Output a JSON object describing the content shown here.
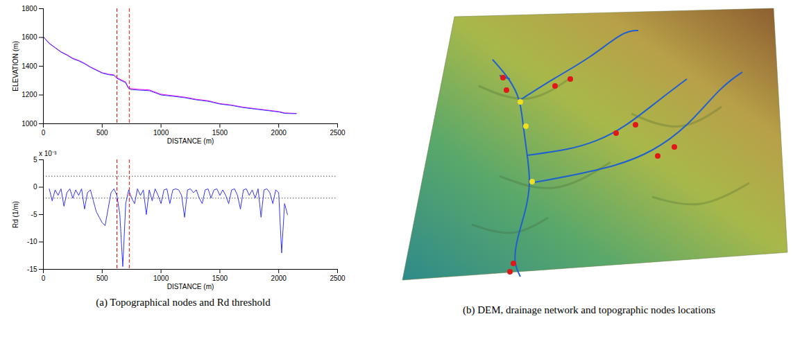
{
  "chart_data": [
    {
      "type": "line",
      "xlabel": "DISTANCE (m)",
      "ylabel": "ELEVATION (m)",
      "x": [
        0,
        50,
        100,
        150,
        200,
        250,
        300,
        350,
        400,
        450,
        500,
        550,
        600,
        625,
        650,
        700,
        720,
        740,
        800,
        900,
        1000,
        1100,
        1200,
        1300,
        1400,
        1500,
        1600,
        1700,
        1800,
        1900,
        2000,
        2050,
        2150
      ],
      "series": [
        {
          "color": "#ff00ff",
          "values": [
            1605,
            1560,
            1530,
            1500,
            1480,
            1455,
            1440,
            1420,
            1395,
            1375,
            1355,
            1345,
            1340,
            1320,
            1310,
            1290,
            1255,
            1245,
            1240,
            1235,
            1205,
            1195,
            1185,
            1170,
            1160,
            1140,
            1130,
            1115,
            1105,
            1095,
            1085,
            1075,
            1072
          ]
        },
        {
          "color": "#3333ff",
          "values": [
            1603,
            1558,
            1528,
            1498,
            1477,
            1452,
            1437,
            1417,
            1392,
            1372,
            1352,
            1342,
            1336,
            1316,
            1305,
            1284,
            1250,
            1238,
            1234,
            1230,
            1200,
            1191,
            1181,
            1166,
            1156,
            1137,
            1127,
            1112,
            1102,
            1092,
            1082,
            1072,
            1070
          ]
        }
      ],
      "vlines": [
        625,
        730
      ],
      "vline_color": "#ff0000",
      "vline_style": "dashed",
      "xlim": [
        0,
        2500
      ],
      "xticks": [
        0,
        500,
        1000,
        1500,
        2000,
        2500
      ],
      "ylim": [
        1000,
        1800
      ],
      "yticks": [
        1000,
        1200,
        1400,
        1600,
        1800
      ]
    },
    {
      "type": "line",
      "xlabel": "DISTANCE (m)",
      "ylabel": "Rd (1/m)",
      "y_multiplier": "x 10⁻³",
      "x": [
        50,
        75,
        100,
        125,
        150,
        175,
        200,
        225,
        250,
        275,
        300,
        325,
        350,
        375,
        400,
        425,
        450,
        475,
        500,
        525,
        550,
        575,
        600,
        625,
        650,
        675,
        700,
        725,
        750,
        775,
        800,
        825,
        850,
        875,
        900,
        925,
        950,
        975,
        1000,
        1025,
        1050,
        1075,
        1100,
        1125,
        1150,
        1175,
        1200,
        1225,
        1250,
        1275,
        1300,
        1325,
        1350,
        1375,
        1400,
        1425,
        1450,
        1475,
        1500,
        1525,
        1550,
        1575,
        1600,
        1625,
        1650,
        1675,
        1700,
        1725,
        1750,
        1775,
        1800,
        1825,
        1850,
        1875,
        1900,
        1925,
        1950,
        1975,
        2000,
        2025,
        2050,
        2075
      ],
      "series": [
        {
          "color": "#3333ff",
          "values": [
            -0.3,
            -2.5,
            -0.5,
            -1.5,
            -0.3,
            -3.5,
            -1,
            -0.3,
            -2,
            -0.5,
            -1.5,
            -0.3,
            -4,
            -1,
            -0.5,
            -2.5,
            -4.5,
            -5.5,
            -6.5,
            -7,
            -4,
            -1,
            -0.3,
            -1.5,
            -5,
            -14.5,
            -3,
            -0.5,
            -2,
            -3,
            -0.3,
            -1.5,
            -0.5,
            -5,
            -0.5,
            -2.5,
            -0.3,
            -1.5,
            -3,
            -0.5,
            -0.3,
            -3,
            -0.5,
            -0.3,
            -0.5,
            -1.5,
            -5.5,
            -0.5,
            -0.3,
            -1,
            -0.5,
            -2,
            -3,
            -0.5,
            -0.3,
            -2,
            -0.5,
            -0.3,
            -1.5,
            -0.5,
            -1.5,
            -3,
            -0.5,
            -0.3,
            -1.5,
            -4,
            -0.5,
            -0.3,
            -1.5,
            -0.5,
            -2,
            -0.3,
            -5.5,
            -0.5,
            -0.3,
            -1,
            -3,
            -0.5,
            -1,
            -12,
            -3,
            -5
          ]
        }
      ],
      "vlines": [
        625,
        730
      ],
      "vline_color": "#ff0000",
      "vline_style": "dashed",
      "hlines": [
        2,
        -2
      ],
      "hline_color": "#555555",
      "hline_style": "dotted",
      "xlim": [
        0,
        2500
      ],
      "xticks": [
        0,
        500,
        1000,
        1500,
        2000,
        2500
      ],
      "ylim": [
        -15,
        5
      ],
      "yticks": [
        -15,
        -10,
        -5,
        0,
        5
      ]
    }
  ],
  "figure": {
    "caption_a": "(a)  Topographical nodes and Rd threshold",
    "caption_b": "(b)  DEM, drainage network and topographic nodes locations"
  }
}
